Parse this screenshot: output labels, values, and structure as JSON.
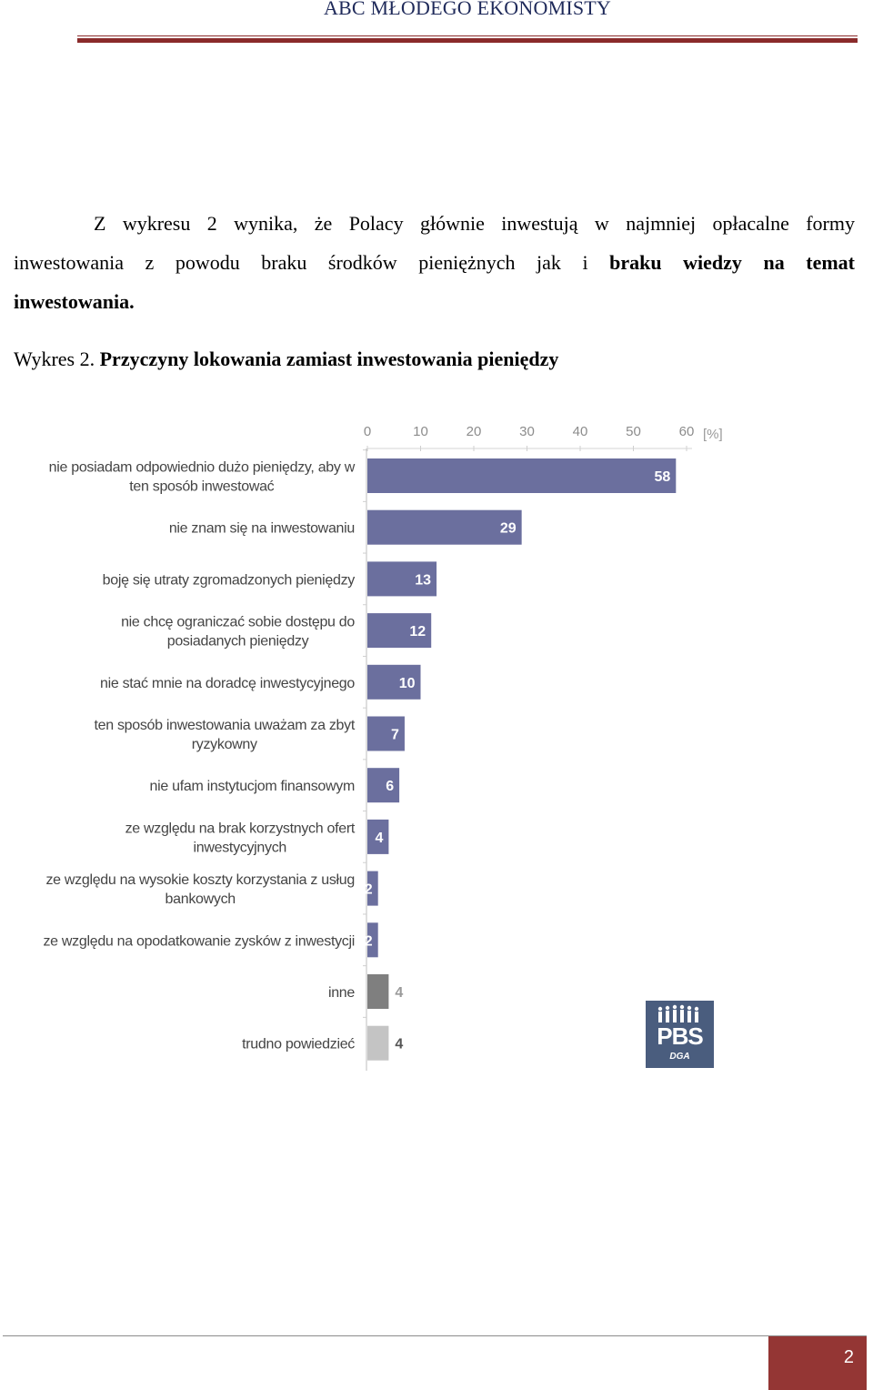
{
  "header": {
    "title": "ABC MŁODEGO EKONOMISTY"
  },
  "paragraph": {
    "line1": "Z wykresu 2 wynika, że Polacy głównie inwestują w najmniej opłacalne formy",
    "line2_normal": "inwestowania z powodu braku środków pieniężnych jak i ",
    "line2_bold": "braku wiedzy na temat",
    "line3_bold": "inwestowania."
  },
  "caption": {
    "prefix": "Wykres 2. ",
    "title": "Przyczyny lokowania zamiast inwestowania pieniędzy"
  },
  "chart_data": {
    "type": "bar",
    "orientation": "horizontal",
    "xlim": [
      0,
      60
    ],
    "ticks": [
      0,
      10,
      20,
      30,
      40,
      50,
      60
    ],
    "unit": "[%]",
    "categories": [
      [
        "nie posiadam odpowiednio dużo pieniędzy, aby w",
        "ten sposób inwestować"
      ],
      [
        "nie znam się na inwestowaniu"
      ],
      [
        "boję się utraty zgromadzonych pieniędzy"
      ],
      [
        "nie chcę ograniczać sobie dostępu do",
        "posiadanych pieniędzy"
      ],
      [
        "nie stać mnie na doradcę inwestycyjnego"
      ],
      [
        "ten sposób inwestowania uważam za zbyt",
        "ryzykowny"
      ],
      [
        "nie ufam instytucjom finansowym"
      ],
      [
        "ze względu na brak korzystnych ofert",
        "inwestycyjnych"
      ],
      [
        "ze względu na wysokie koszty korzystania z usług",
        "bankowych"
      ],
      [
        "ze względu na opodatkowanie zysków z inwestycji"
      ],
      [
        "inne"
      ],
      [
        "trudno powiedzieć"
      ]
    ],
    "values": [
      58,
      29,
      13,
      12,
      10,
      7,
      6,
      4,
      2,
      2,
      4,
      4
    ],
    "colors": [
      "#6b6f9e",
      "#6b6f9e",
      "#6b6f9e",
      "#6b6f9e",
      "#6b6f9e",
      "#6b6f9e",
      "#6b6f9e",
      "#6b6f9e",
      "#6b6f9e",
      "#6b6f9e",
      "#7f7f7f",
      "#c4c4c4"
    ],
    "label_colors": [
      "#ffffff",
      "#ffffff",
      "#ffffff",
      "#ffffff",
      "#ffffff",
      "#ffffff",
      "#ffffff",
      "#ffffff",
      "#ffffff",
      "#ffffff",
      "#9a9a9a",
      "#555555"
    ]
  },
  "logo": {
    "text": "PBS",
    "subtext": "DGA"
  },
  "footer": {
    "page_number": "2"
  }
}
